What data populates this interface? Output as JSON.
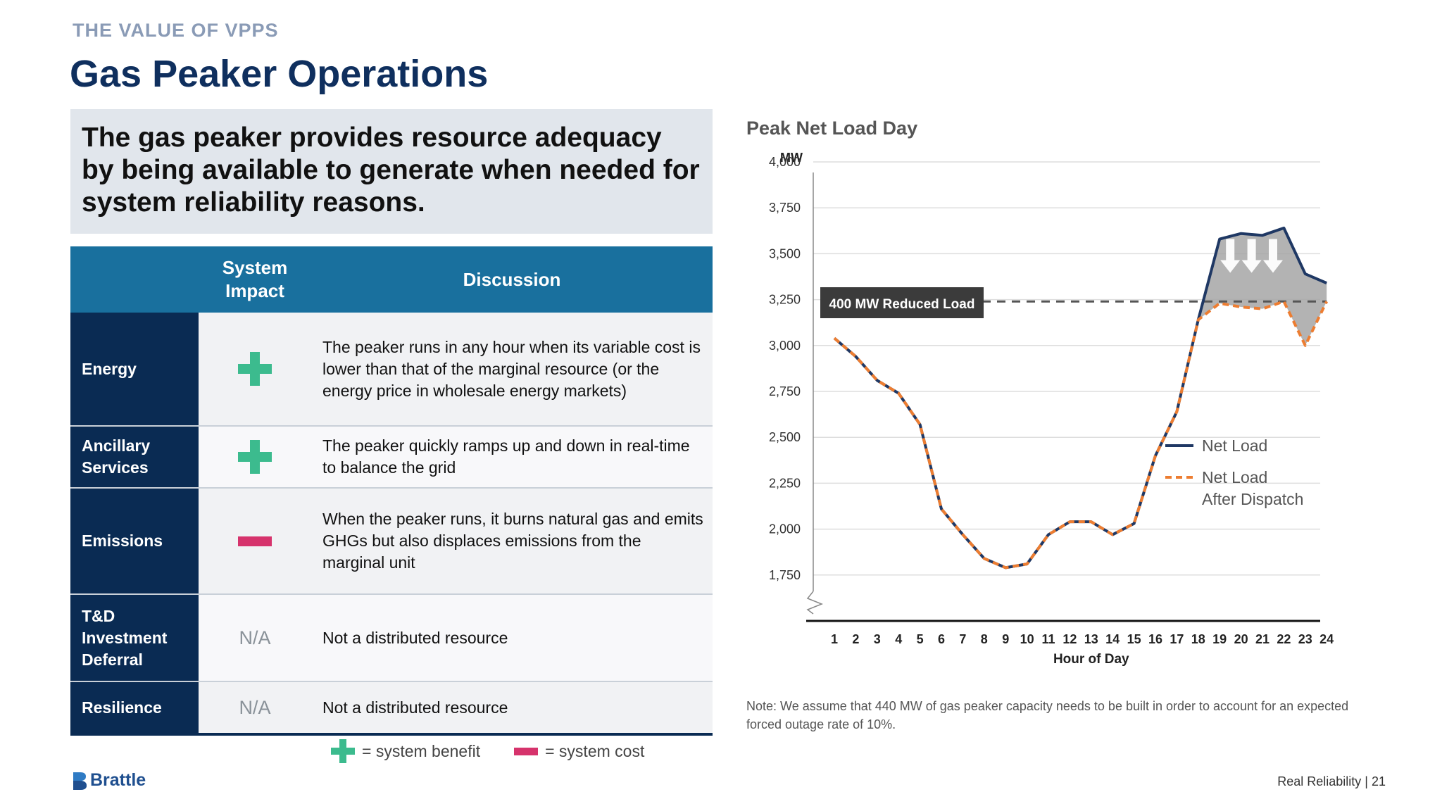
{
  "header": {
    "section_label": "THE VALUE OF VPPS",
    "title": "Gas Peaker Operations"
  },
  "callout": "The gas peaker provides resource adequacy by being available to generate when needed for system reliability reasons.",
  "table": {
    "col_system_impact": "System Impact",
    "col_discussion": "Discussion",
    "rows": [
      {
        "label": "Energy",
        "impact": "plus",
        "impact_text": "",
        "discussion": "The peaker runs in any hour when its variable cost is lower than that of the marginal resource (or the energy price in wholesale energy markets)"
      },
      {
        "label": "Ancillary Services",
        "impact": "plus",
        "impact_text": "",
        "discussion": "The peaker quickly ramps up and down in real-time to balance the grid"
      },
      {
        "label": "Emissions",
        "impact": "minus",
        "impact_text": "",
        "discussion": "When the peaker runs, it burns natural gas and emits GHGs but also displaces emissions from the marginal unit"
      },
      {
        "label": "T&D Investment Deferral",
        "impact": "na",
        "impact_text": "N/A",
        "discussion": "Not a distributed resource"
      },
      {
        "label": "Resilience",
        "impact": "na",
        "impact_text": "N/A",
        "discussion": "Not a distributed resource"
      }
    ]
  },
  "legend": {
    "benefit": "= system benefit",
    "cost": "= system cost"
  },
  "colors": {
    "plus": "#3cbb8e",
    "minus": "#d6336c",
    "net_load": "#1f3864",
    "net_load_after": "#ed7d31",
    "shade": "#a6a6a6"
  },
  "chart_data": {
    "type": "line",
    "title": "Peak Net Load Day",
    "ylabel": "MW",
    "xlabel": "Hour of Day",
    "x": [
      1,
      2,
      3,
      4,
      5,
      6,
      7,
      8,
      9,
      10,
      11,
      12,
      13,
      14,
      15,
      16,
      17,
      18,
      19,
      20,
      21,
      22,
      23,
      24
    ],
    "y_ticks": [
      1750,
      2000,
      2250,
      2500,
      2750,
      3000,
      3250,
      3500,
      3750,
      4000
    ],
    "y_tick_labels": [
      "1,750",
      "2,000",
      "2,250",
      "2,500",
      "2,750",
      "3,000",
      "3,250",
      "3,500",
      "3,750",
      "4,000"
    ],
    "ylim": [
      1500,
      4000
    ],
    "grid": true,
    "series": [
      {
        "name": "Net Load",
        "values": [
          3040,
          2940,
          2810,
          2740,
          2570,
          2110,
          1970,
          1840,
          1790,
          1810,
          1970,
          2040,
          2040,
          1970,
          2030,
          2400,
          2640,
          3140,
          3580,
          3610,
          3600,
          3640,
          3390,
          3340
        ]
      },
      {
        "name": "Net Load After Dispatch",
        "values": [
          3040,
          2940,
          2810,
          2740,
          2570,
          2110,
          1970,
          1840,
          1790,
          1810,
          1970,
          2040,
          2040,
          1970,
          2030,
          2400,
          2640,
          3140,
          3230,
          3210,
          3200,
          3240,
          3000,
          3240
        ]
      }
    ],
    "reference_line": 3240,
    "annotation": "400 MW Reduced Load",
    "legend_position": "right"
  },
  "note": "Note: We assume that 440 MW of gas peaker capacity needs to be built in order to account for an expected forced outage rate of 10%.",
  "brand": "Brattle",
  "footer": "Real Reliability | 21"
}
